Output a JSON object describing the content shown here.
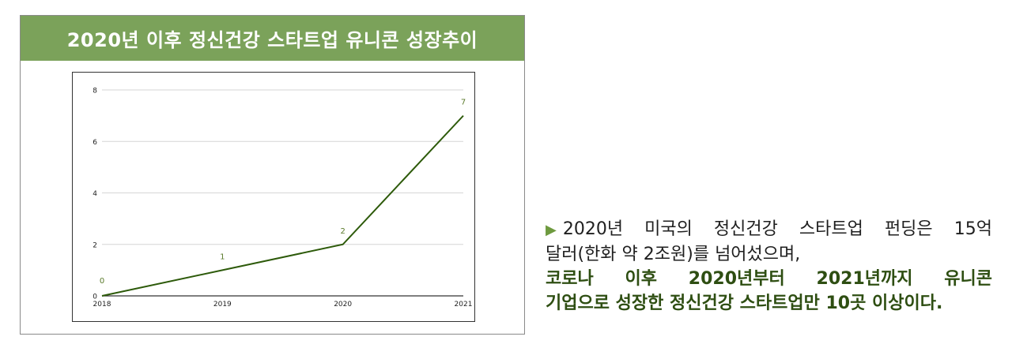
{
  "header": {
    "title": "2020년 이후 정신건강 스타트업 유니콘 성장추이"
  },
  "chart_data": {
    "type": "line",
    "title": "",
    "xlabel": "",
    "ylabel": "",
    "categories": [
      "2018",
      "2019",
      "2020",
      "2021"
    ],
    "values": [
      0,
      1,
      2,
      7
    ],
    "data_labels": [
      "0",
      "1",
      "2",
      "7"
    ],
    "y_ticks": [
      "0",
      "2",
      "4",
      "6",
      "8"
    ],
    "ylim": [
      0,
      8
    ],
    "grid": true,
    "line_color": "#2d5a0a",
    "label_color": "#5a7a2a"
  },
  "description": {
    "bullet_icon": "triangle-right-icon",
    "line1_words": [
      "2020년",
      "미국의",
      "정신건강",
      "스타트업",
      "펀딩은",
      "15억"
    ],
    "line2": "달러(한화 약 2조원)를 넘어섰으며,",
    "line3_words": [
      "코로나",
      "이후",
      "2020년부터",
      "2021년까지",
      "유니콘"
    ],
    "line4": "기업으로 성장한 정신건강 스타트업만 10곳 이상이다."
  },
  "colors": {
    "header_bg": "#7ba25a",
    "accent_text": "#2e4e12",
    "bullet": "#6e9a3f"
  }
}
